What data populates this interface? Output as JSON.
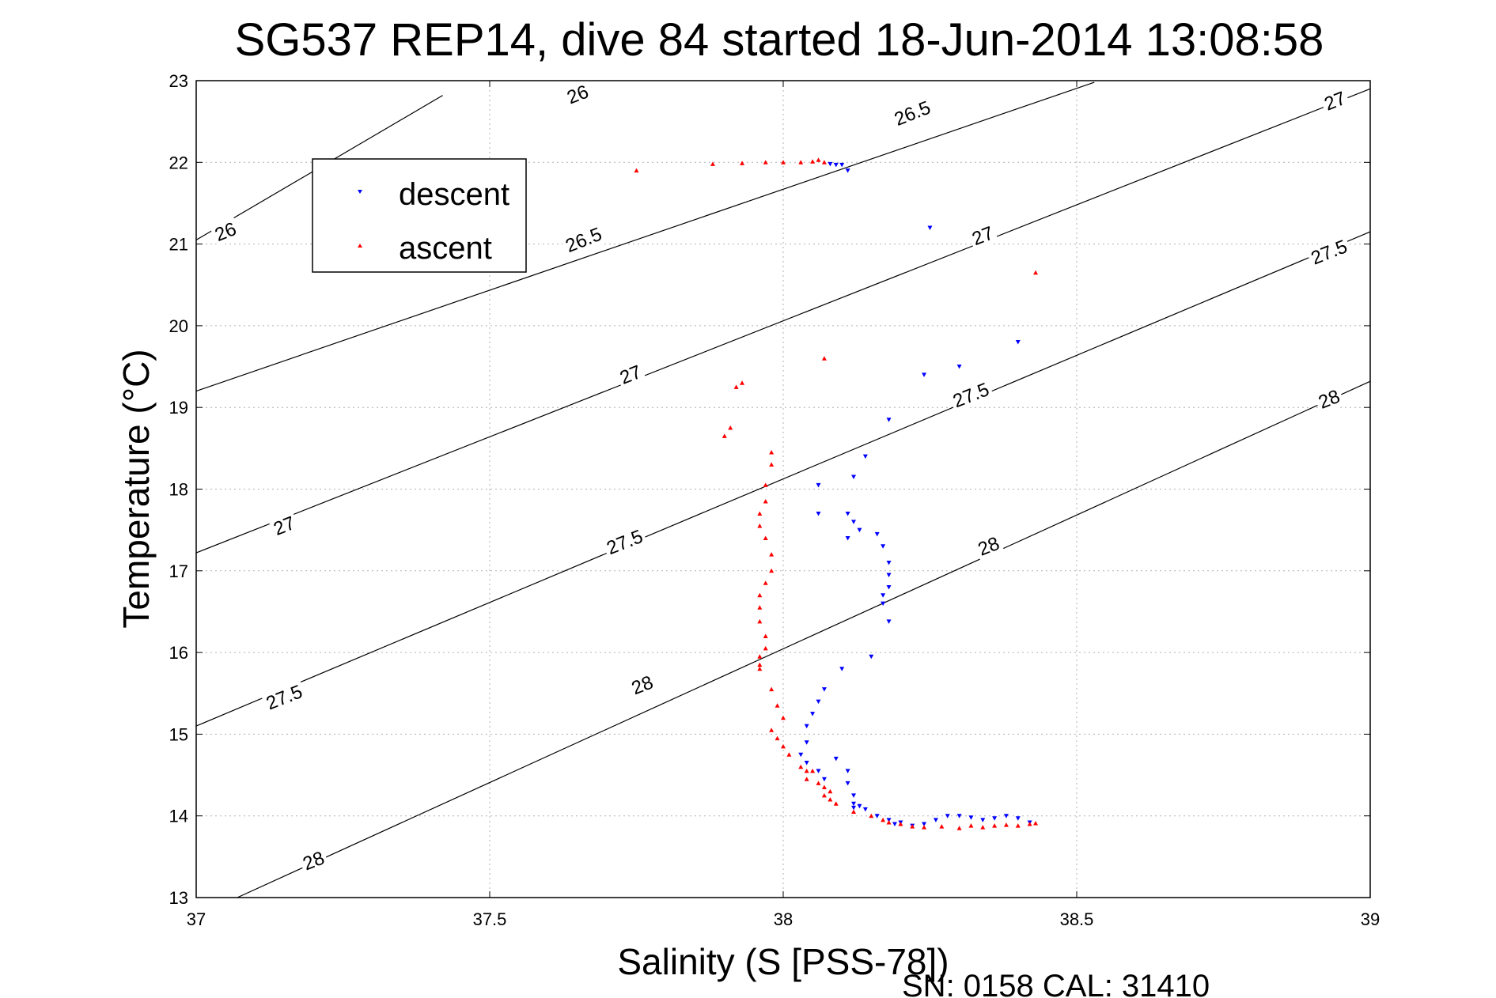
{
  "colors": {
    "descent": "#0000ff",
    "ascent": "#ff0000",
    "contour": "#000000",
    "grid": "#b0b0b0"
  },
  "chart_data": {
    "type": "scatter",
    "title": "SG537 REP14, dive 84 started 18-Jun-2014 13:08:58",
    "xlabel": "Salinity (S [PSS-78])",
    "ylabel": "Temperature (°C)",
    "xlim": [
      37,
      39
    ],
    "ylim": [
      13,
      23
    ],
    "xticks": [
      "37",
      "37.5",
      "38",
      "38.5",
      "39"
    ],
    "yticks": [
      "13",
      "14",
      "15",
      "16",
      "17",
      "18",
      "19",
      "20",
      "21",
      "22",
      "23"
    ],
    "grid": true,
    "legend_position": "top-left",
    "footer": "SN: 0158  CAL: 31410",
    "contour_lines": [
      {
        "label": "26",
        "x1": 37.0,
        "y1": 21.05,
        "x2": 37.42,
        "y2": 22.82
      },
      {
        "label": "26.5",
        "x1": 37.0,
        "y1": 19.2,
        "x2": 38.53,
        "y2": 22.98
      },
      {
        "label": "27",
        "x1": 37.0,
        "y1": 17.22,
        "x2": 39.0,
        "y2": 22.9
      },
      {
        "label": "27.5",
        "x1": 37.0,
        "y1": 15.1,
        "x2": 39.0,
        "y2": 21.15
      },
      {
        "label": "28",
        "x1": 37.07,
        "y1": 13.0,
        "x2": 39.0,
        "y2": 19.32
      }
    ],
    "contour_labels": [
      {
        "text": "26",
        "x": 37.65,
        "y": 22.83
      },
      {
        "text": "26",
        "x": 37.05,
        "y": 21.15
      },
      {
        "text": "26.5",
        "x": 38.22,
        "y": 22.6
      },
      {
        "text": "26.5",
        "x": 37.66,
        "y": 21.05
      },
      {
        "text": "27",
        "x": 38.94,
        "y": 22.75
      },
      {
        "text": "27",
        "x": 38.34,
        "y": 21.1
      },
      {
        "text": "27",
        "x": 37.74,
        "y": 19.4
      },
      {
        "text": "27",
        "x": 37.15,
        "y": 17.55
      },
      {
        "text": "27.5",
        "x": 38.93,
        "y": 20.9
      },
      {
        "text": "27.5",
        "x": 38.32,
        "y": 19.15
      },
      {
        "text": "27.5",
        "x": 37.73,
        "y": 17.35
      },
      {
        "text": "27.5",
        "x": 37.15,
        "y": 15.45
      },
      {
        "text": "28",
        "x": 38.93,
        "y": 19.1
      },
      {
        "text": "28",
        "x": 38.35,
        "y": 17.3
      },
      {
        "text": "28",
        "x": 37.76,
        "y": 15.6
      },
      {
        "text": "28",
        "x": 37.2,
        "y": 13.45
      }
    ],
    "series": [
      {
        "name": "descent",
        "marker": "down-triangle",
        "x": [
          38.08,
          38.09,
          38.1,
          38.11,
          38.25,
          38.4,
          38.3,
          38.24,
          38.18,
          38.14,
          38.12,
          38.06,
          38.06,
          38.11,
          38.11,
          38.13,
          38.12,
          38.16,
          38.17,
          38.18,
          38.18,
          38.18,
          38.17,
          38.17,
          38.18,
          38.15,
          38.1,
          38.07,
          38.06,
          38.05,
          38.04,
          38.04,
          38.03,
          38.04,
          38.06,
          38.07,
          38.09,
          38.11,
          38.11,
          38.12,
          38.12,
          38.12,
          38.13,
          38.14,
          38.16,
          38.18,
          38.19,
          38.2,
          38.22,
          38.24,
          38.26,
          38.28,
          38.3,
          38.32,
          38.34,
          38.36,
          38.38,
          38.4,
          38.42
        ],
        "y": [
          21.98,
          21.97,
          21.97,
          21.9,
          21.2,
          19.8,
          19.5,
          19.4,
          18.85,
          18.4,
          18.15,
          18.05,
          17.7,
          17.7,
          17.4,
          17.5,
          17.6,
          17.45,
          17.3,
          17.1,
          16.95,
          16.8,
          16.7,
          16.6,
          16.38,
          15.95,
          15.8,
          15.55,
          15.4,
          15.25,
          15.1,
          14.9,
          14.75,
          14.65,
          14.55,
          14.45,
          14.7,
          14.55,
          14.4,
          14.25,
          14.15,
          14.1,
          14.12,
          14.08,
          14.0,
          13.95,
          13.9,
          13.92,
          13.88,
          13.9,
          13.95,
          14.0,
          14.0,
          13.98,
          13.95,
          13.97,
          14.0,
          13.97,
          13.92
        ]
      },
      {
        "name": "ascent",
        "marker": "up-triangle",
        "x": [
          37.75,
          37.88,
          37.93,
          37.97,
          38.0,
          38.03,
          38.05,
          38.06,
          38.07,
          38.43,
          38.07,
          37.93,
          37.92,
          37.91,
          37.9,
          37.98,
          37.98,
          37.97,
          37.97,
          37.96,
          37.96,
          37.97,
          37.98,
          37.98,
          37.97,
          37.96,
          37.96,
          37.96,
          37.97,
          37.97,
          37.96,
          37.96,
          37.96,
          37.98,
          37.99,
          38.0,
          37.98,
          37.99,
          38.0,
          38.01,
          38.03,
          38.04,
          38.05,
          38.04,
          38.06,
          38.07,
          38.08,
          38.07,
          38.08,
          38.09,
          38.12,
          38.15,
          38.17,
          38.18,
          38.2,
          38.22,
          38.24,
          38.27,
          38.3,
          38.32,
          38.34,
          38.36,
          38.38,
          38.4,
          38.42,
          38.43
        ],
        "y": [
          21.9,
          21.98,
          21.99,
          22.0,
          22.0,
          22.0,
          22.01,
          22.03,
          22.0,
          20.65,
          19.6,
          19.3,
          19.25,
          18.75,
          18.65,
          18.45,
          18.3,
          18.05,
          17.85,
          17.7,
          17.55,
          17.4,
          17.2,
          17.0,
          16.85,
          16.7,
          16.55,
          16.38,
          16.2,
          16.05,
          15.95,
          15.85,
          15.8,
          15.55,
          15.35,
          15.2,
          15.05,
          14.95,
          14.85,
          14.75,
          14.6,
          14.55,
          14.55,
          14.45,
          14.4,
          14.35,
          14.3,
          14.25,
          14.2,
          14.15,
          14.05,
          14.0,
          13.95,
          13.92,
          13.9,
          13.87,
          13.86,
          13.87,
          13.85,
          13.88,
          13.86,
          13.88,
          13.89,
          13.88,
          13.9,
          13.91
        ]
      }
    ]
  }
}
